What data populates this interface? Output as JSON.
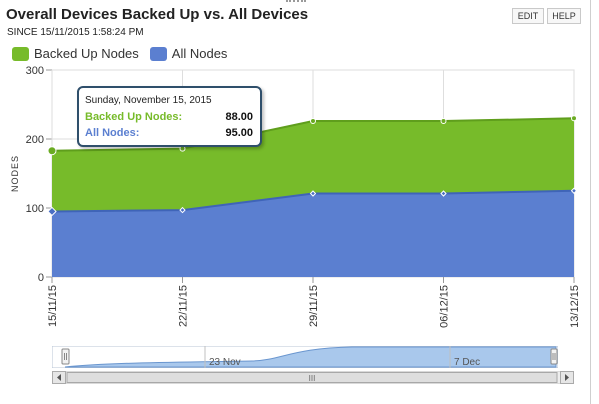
{
  "header": {
    "title": "Overall Devices Backed Up vs. All Devices",
    "subtitle": "SINCE 15/11/2015 1:58:24 PM",
    "edit_label": "EDIT",
    "help_label": "HELP"
  },
  "colors": {
    "backed_up": "#77bb2a",
    "all_nodes": "#5b7fd0"
  },
  "tooltip": {
    "date": "Sunday, November 15, 2015",
    "backed_label": "Backed Up Nodes:",
    "backed_value": "88.00",
    "all_label": "All Nodes:",
    "all_value": "95.00"
  },
  "navigator": {
    "labels": [
      "23 Nov",
      "7 Dec"
    ],
    "scroll_grip": "III"
  },
  "chart_data": {
    "type": "area",
    "stacked": true,
    "ylabel": "NODES",
    "xlabel": "",
    "ylim": [
      0,
      300
    ],
    "yticks": [
      0,
      100,
      200,
      300
    ],
    "xlim": [
      "15/11/15",
      "13/12/15"
    ],
    "x": [
      "15/11/15",
      "22/11/15",
      "29/11/15",
      "06/12/15",
      "13/12/15"
    ],
    "x_tick_labels": [
      "15/11/15",
      "22/11/15",
      "29/11/15",
      "06/12/15",
      "13/12/15"
    ],
    "series": [
      {
        "name": "All Nodes",
        "values": [
          95,
          97,
          121,
          121,
          125
        ]
      },
      {
        "name": "Backed Up Nodes",
        "values": [
          88,
          89,
          105,
          105,
          105
        ]
      }
    ],
    "legend": "top-left",
    "grid": true
  }
}
